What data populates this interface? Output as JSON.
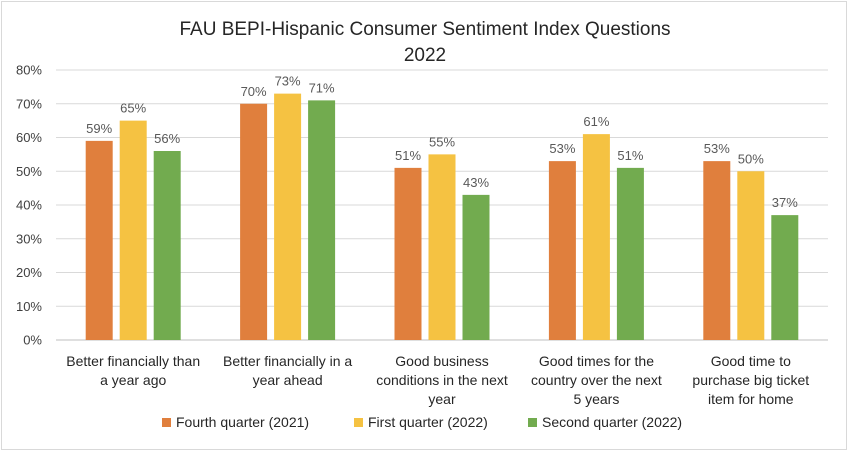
{
  "chart_data": {
    "type": "bar",
    "title": "FAU BEPI-Hispanic Consumer Sentiment Index Questions",
    "subtitle": "2022",
    "ylim": [
      0,
      80
    ],
    "yticks": [
      0,
      10,
      20,
      30,
      40,
      50,
      60,
      70,
      80
    ],
    "ytick_labels": [
      "0%",
      "10%",
      "20%",
      "30%",
      "40%",
      "50%",
      "60%",
      "70%",
      "80%"
    ],
    "categories": [
      [
        "Better financially than",
        "a year ago"
      ],
      [
        "Better financially in a",
        "year ahead"
      ],
      [
        "Good business",
        "conditions in the next",
        "year"
      ],
      [
        "Good times for the",
        "country over the next",
        "5 years"
      ],
      [
        "Good time to",
        "purchase big ticket",
        "item for home"
      ]
    ],
    "series": [
      {
        "name": "Fourth quarter (2021)",
        "color": "#e07f3d",
        "values": [
          59,
          70,
          51,
          53,
          53
        ],
        "labels": [
          "59%",
          "70%",
          "51%",
          "53%",
          "53%"
        ]
      },
      {
        "name": "First quarter (2022)",
        "color": "#f5c242",
        "values": [
          65,
          73,
          55,
          61,
          50
        ],
        "labels": [
          "65%",
          "73%",
          "55%",
          "61%",
          "50%"
        ]
      },
      {
        "name": "Second quarter (2022)",
        "color": "#72ab4f",
        "values": [
          56,
          71,
          43,
          51,
          37
        ],
        "labels": [
          "56%",
          "71%",
          "43%",
          "51%",
          "37%"
        ]
      }
    ],
    "grid": true,
    "legend_position": "bottom"
  }
}
